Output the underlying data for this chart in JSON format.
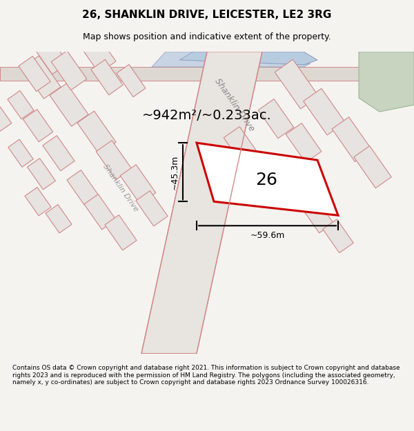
{
  "title_line1": "26, SHANKLIN DRIVE, LEICESTER, LE2 3RG",
  "title_line2": "Map shows position and indicative extent of the property.",
  "footer_text": "Contains OS data © Crown copyright and database right 2021. This information is subject to Crown copyright and database rights 2023 and is reproduced with the permission of HM Land Registry. The polygons (including the associated geometry, namely x, y co-ordinates) are subject to Crown copyright and database rights 2023 Ordnance Survey 100026316.",
  "area_text": "~942m²/~0.233ac.",
  "label_26": "26",
  "dim_height": "~45.3m",
  "dim_width": "~59.6m",
  "road_label_diagonal": "Shanklin Drive",
  "road_label_top": "Shanklin Drive",
  "bg_color": "#f0eeeb",
  "map_bg": "#f5f3f0",
  "highlight_color": "#cc0000",
  "plot_fill": "#ffffff",
  "road_color": "#ffffff",
  "line_color": "#d4a0a0",
  "green_color": "#c8d8c0",
  "blue_color": "#b8d0e8"
}
